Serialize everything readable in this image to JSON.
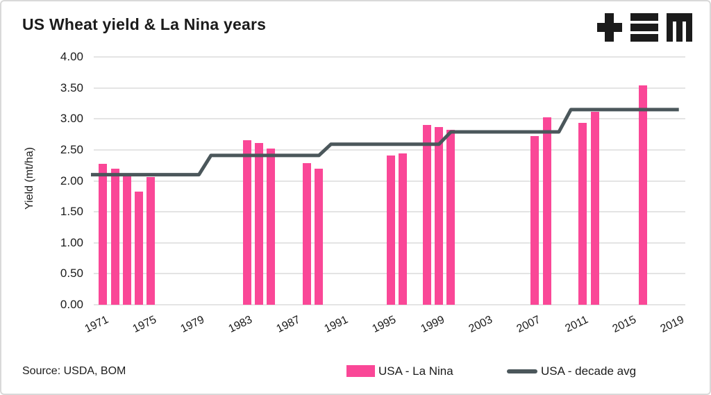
{
  "card": {
    "title": "US Wheat yield & La Nina years",
    "source": "Source: USDA, BOM",
    "logo": "tem-logo"
  },
  "legend": {
    "bar_label": "USA - La Nina",
    "line_label": "USA - decade avg"
  },
  "colors": {
    "bar": "#FA4797",
    "line": "#4B575B",
    "grid": "#E4E4E4",
    "text": "#1B1B1B"
  },
  "chart_data": {
    "type": "bar",
    "title": "US Wheat yield & La Nina years",
    "xlabel": "",
    "ylabel": "Yield (mt/ha)",
    "ylim": [
      0,
      4
    ],
    "ytick_step": 0.5,
    "xlim": [
      1970,
      2019
    ],
    "xticks": [
      1971,
      1975,
      1979,
      1983,
      1987,
      1991,
      1995,
      1999,
      2003,
      2007,
      2011,
      2015,
      2019
    ],
    "grid": true,
    "legend_position": "bottom-right",
    "series": [
      {
        "name": "USA - La Nina",
        "type": "bar",
        "color": "#FA4797",
        "points": [
          {
            "year": 1971,
            "value": 2.28
          },
          {
            "year": 1972,
            "value": 2.2
          },
          {
            "year": 1973,
            "value": 2.12
          },
          {
            "year": 1974,
            "value": 1.83
          },
          {
            "year": 1975,
            "value": 2.06
          },
          {
            "year": 1983,
            "value": 2.65
          },
          {
            "year": 1984,
            "value": 2.61
          },
          {
            "year": 1985,
            "value": 2.52
          },
          {
            "year": 1988,
            "value": 2.29
          },
          {
            "year": 1989,
            "value": 2.2
          },
          {
            "year": 1995,
            "value": 2.41
          },
          {
            "year": 1996,
            "value": 2.44
          },
          {
            "year": 1998,
            "value": 2.9
          },
          {
            "year": 1999,
            "value": 2.87
          },
          {
            "year": 2000,
            "value": 2.82
          },
          {
            "year": 2007,
            "value": 2.72
          },
          {
            "year": 2008,
            "value": 3.02
          },
          {
            "year": 2011,
            "value": 2.93
          },
          {
            "year": 2012,
            "value": 3.12
          },
          {
            "year": 2016,
            "value": 3.54
          }
        ]
      },
      {
        "name": "USA - decade avg",
        "type": "step-line",
        "color": "#4B575B",
        "segments": [
          {
            "from": 1970,
            "to": 1979,
            "value": 2.1
          },
          {
            "from": 1980,
            "to": 1989,
            "value": 2.41
          },
          {
            "from": 1990,
            "to": 1999,
            "value": 2.59
          },
          {
            "from": 2000,
            "to": 2009,
            "value": 2.79
          },
          {
            "from": 2010,
            "to": 2019,
            "value": 3.15
          }
        ]
      }
    ]
  }
}
